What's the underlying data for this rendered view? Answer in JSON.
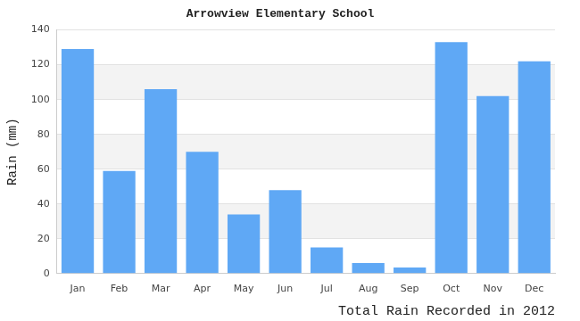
{
  "chart_data": {
    "type": "bar",
    "title": "Arrowview Elementary School",
    "x_label": "Total Rain Recorded in 2012",
    "y_label": "Rain (mm)",
    "categories": [
      "Jan",
      "Feb",
      "Mar",
      "Apr",
      "May",
      "Jun",
      "Jul",
      "Aug",
      "Sep",
      "Oct",
      "Nov",
      "Dec"
    ],
    "values": [
      129,
      59,
      106,
      70,
      34,
      48,
      15,
      6,
      3.5,
      133,
      102,
      122
    ],
    "color": "#5fa8f5",
    "ylim": [
      0,
      140
    ],
    "yticks": [
      0,
      20,
      40,
      60,
      80,
      100,
      120,
      140
    ],
    "grid": true
  }
}
